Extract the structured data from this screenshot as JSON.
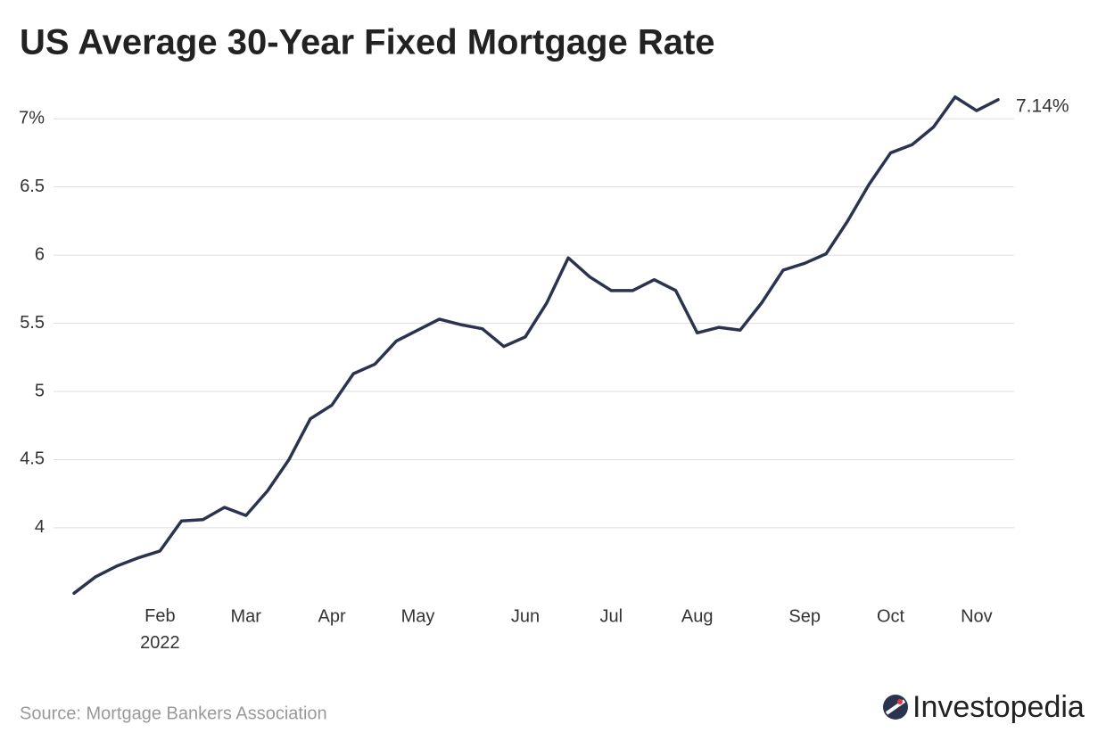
{
  "chart_data": {
    "type": "line",
    "title": "US Average 30-Year Fixed Mortgage Rate",
    "source": "Source: Mortgage Bankers Association",
    "brand": "Investopedia",
    "categories": [
      null,
      null,
      null,
      null,
      "Feb 2022",
      null,
      null,
      null,
      "Mar",
      null,
      null,
      null,
      "Apr",
      null,
      null,
      null,
      "May",
      null,
      null,
      null,
      null,
      "Jun",
      null,
      null,
      null,
      "Jul",
      null,
      null,
      null,
      "Aug",
      null,
      null,
      null,
      null,
      "Sep",
      null,
      null,
      null,
      "Oct",
      null,
      null,
      null,
      "Nov",
      null
    ],
    "series": [
      {
        "name": "30-Year Fixed",
        "color": "#2b334f",
        "values": [
          3.52,
          3.64,
          3.72,
          3.78,
          3.83,
          4.05,
          4.06,
          4.15,
          4.09,
          4.27,
          4.5,
          4.8,
          4.9,
          5.13,
          5.2,
          5.37,
          5.45,
          5.53,
          5.49,
          5.46,
          5.33,
          5.4,
          5.65,
          5.98,
          5.84,
          5.74,
          5.74,
          5.82,
          5.74,
          5.43,
          5.47,
          5.45,
          5.65,
          5.89,
          5.94,
          6.01,
          6.25,
          6.52,
          6.75,
          6.81,
          6.94,
          7.16,
          7.06,
          7.14
        ],
        "value_labels": [
          null,
          null,
          null,
          null,
          null,
          null,
          null,
          null,
          null,
          null,
          null,
          null,
          null,
          null,
          null,
          null,
          null,
          null,
          null,
          null,
          null,
          null,
          null,
          null,
          null,
          null,
          null,
          null,
          null,
          null,
          null,
          null,
          null,
          null,
          null,
          null,
          null,
          null,
          null,
          null,
          null,
          null,
          null,
          "7.14%"
        ]
      }
    ],
    "ylim": [
      3.45,
      7.25
    ],
    "yticks": [
      4,
      4.5,
      5,
      5.5,
      6,
      6.5,
      {
        "value": 7,
        "label": "7%"
      }
    ],
    "grid": true
  }
}
